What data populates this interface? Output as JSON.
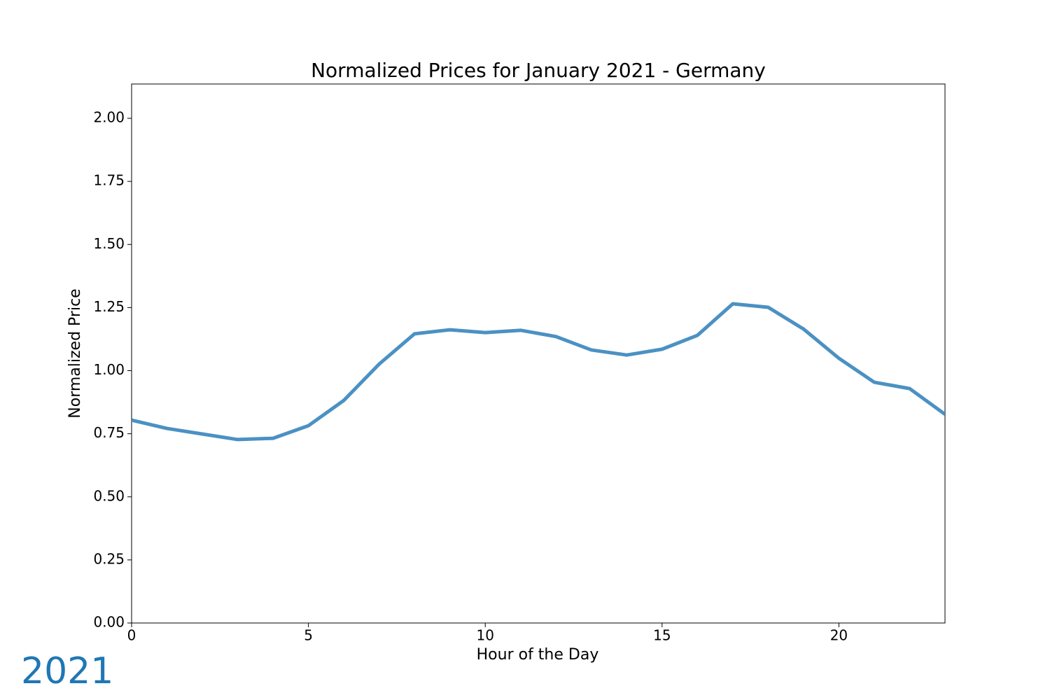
{
  "chart_data": {
    "type": "line",
    "title": "Normalized Prices for January 2021 - Germany",
    "x_label": "Hour of the Day",
    "y_label": "Normalized Price",
    "annotation": "2021",
    "x": [
      0,
      1,
      2,
      3,
      4,
      5,
      6,
      7,
      8,
      9,
      10,
      11,
      12,
      13,
      14,
      15,
      16,
      17,
      18,
      19,
      20,
      21,
      22,
      23
    ],
    "series": [
      {
        "name": "2021",
        "color": "#4b91c3",
        "values": [
          0.804,
          0.771,
          0.749,
          0.727,
          0.732,
          0.782,
          0.882,
          1.026,
          1.146,
          1.162,
          1.151,
          1.16,
          1.135,
          1.082,
          1.062,
          1.085,
          1.14,
          1.265,
          1.251,
          1.165,
          1.049,
          0.954,
          0.929,
          0.827
        ]
      }
    ],
    "xlim": [
      0,
      23
    ],
    "xticks": [
      0,
      5,
      10,
      15,
      20
    ],
    "ylim": [
      0,
      2.136
    ],
    "yticks": [
      {
        "value": 0,
        "label": "0.00"
      },
      {
        "value": 0.25,
        "label": "0.25"
      },
      {
        "value": 0.5,
        "label": "0.50"
      },
      {
        "value": 0.75,
        "label": "0.75"
      },
      {
        "value": 1,
        "label": "1.00"
      },
      {
        "value": 1.25,
        "label": "1.25"
      },
      {
        "value": 1.5,
        "label": "1.50"
      },
      {
        "value": 1.75,
        "label": "1.75"
      },
      {
        "value": 2,
        "label": "2.00"
      }
    ],
    "annotation_color": "#1f77b4"
  }
}
